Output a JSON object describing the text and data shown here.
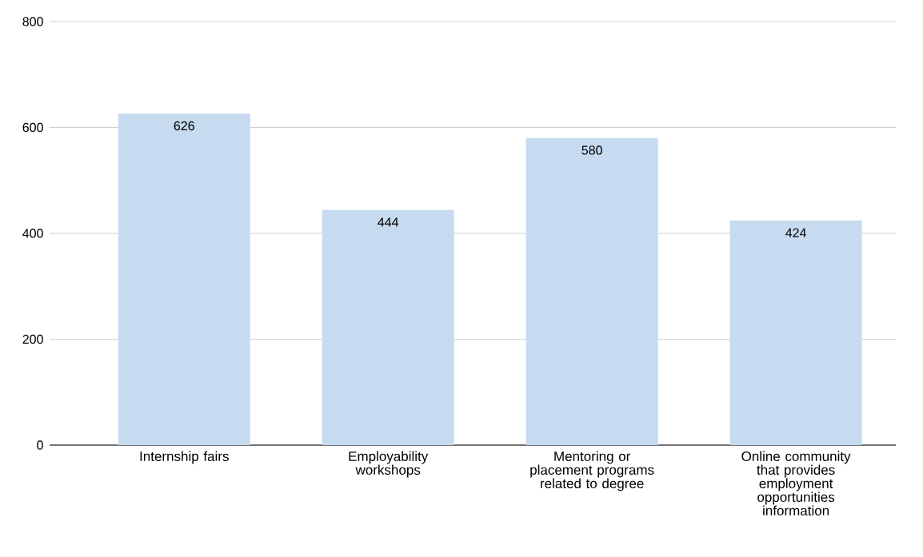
{
  "chart_data": {
    "type": "bar",
    "categories": [
      "Internship fairs",
      "Employability workshops",
      "Mentoring or placement programs related to degree",
      "Online community that provides employment opportunities information"
    ],
    "values": [
      626,
      444,
      580,
      424
    ],
    "color": "#c6daf0",
    "ylim": [
      0,
      800
    ],
    "yticks": [
      0,
      200,
      400,
      600,
      800
    ],
    "grid": "y",
    "data_labels": true
  }
}
